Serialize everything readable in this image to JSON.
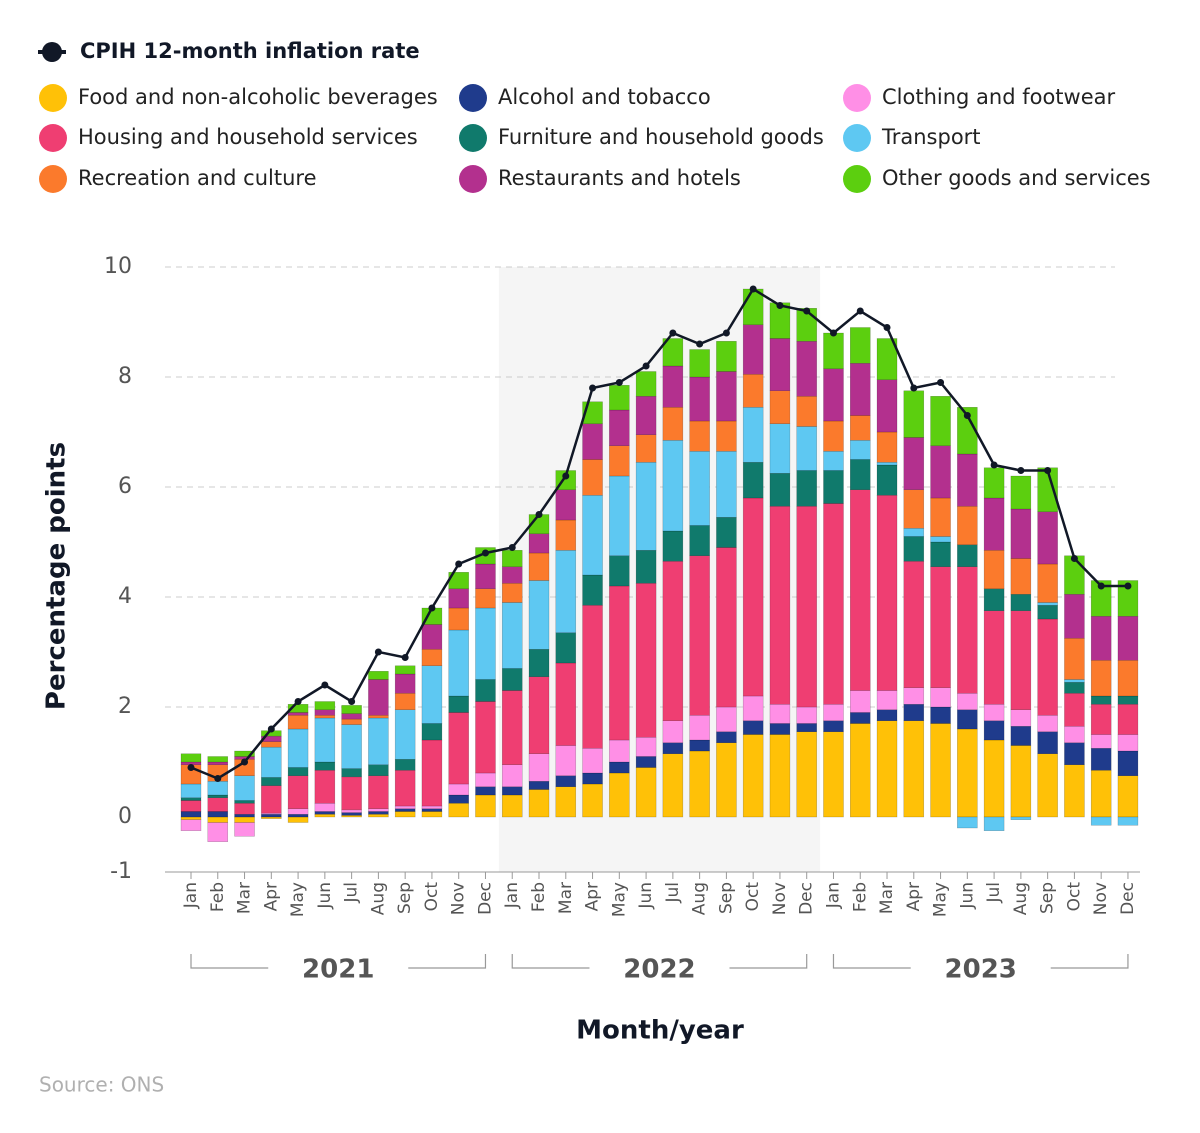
{
  "chart_data": {
    "type": "stacked-bar-line",
    "x_label": "Month/year",
    "y_label": "Percentage points",
    "source": "Source: ONS",
    "categories": [
      "Jan",
      "Feb",
      "Mar",
      "Apr",
      "May",
      "Jun",
      "Jul",
      "Aug",
      "Sep",
      "Oct",
      "Nov",
      "Dec",
      "Jan",
      "Feb",
      "Mar",
      "Apr",
      "May",
      "Jun",
      "Jul",
      "Aug",
      "Sep",
      "Oct",
      "Nov",
      "Dec",
      "Jan",
      "Feb",
      "Mar",
      "Apr",
      "May",
      "Jun",
      "Jul",
      "Aug",
      "Sep",
      "Oct",
      "Nov",
      "Dec"
    ],
    "year_groups": [
      "2021",
      "2022",
      "2023"
    ],
    "highlight_group": 1,
    "ylim": [
      -1,
      10
    ],
    "yticks": [
      -1,
      0,
      2,
      4,
      6,
      8,
      10
    ],
    "grid": true,
    "series": [
      {
        "name": "Food and non-alcoholic beverages",
        "color": "#ffc107",
        "values": [
          -0.05,
          -0.1,
          -0.1,
          -0.03,
          -0.1,
          0.05,
          0.03,
          0.05,
          0.1,
          0.1,
          0.25,
          0.4,
          0.4,
          0.5,
          0.55,
          0.6,
          0.8,
          0.9,
          1.15,
          1.2,
          1.35,
          1.5,
          1.5,
          1.55,
          1.55,
          1.7,
          1.75,
          1.75,
          1.7,
          1.6,
          1.4,
          1.3,
          1.15,
          0.95,
          0.85,
          0.75
        ]
      },
      {
        "name": "Alcohol and tobacco",
        "color": "#1f3b8c",
        "values": [
          0.1,
          0.1,
          0.05,
          0.05,
          0.05,
          0.05,
          0.05,
          0.05,
          0.05,
          0.05,
          0.15,
          0.15,
          0.15,
          0.15,
          0.2,
          0.2,
          0.2,
          0.2,
          0.2,
          0.2,
          0.2,
          0.25,
          0.2,
          0.15,
          0.2,
          0.2,
          0.2,
          0.3,
          0.3,
          0.35,
          0.35,
          0.35,
          0.4,
          0.4,
          0.4,
          0.45
        ]
      },
      {
        "name": "Clothing and footwear",
        "color": "#ff8fe6",
        "values": [
          -0.2,
          -0.35,
          -0.25,
          0.02,
          0.1,
          0.15,
          0.05,
          0.05,
          0.05,
          0.05,
          0.2,
          0.25,
          0.4,
          0.5,
          0.55,
          0.45,
          0.4,
          0.35,
          0.4,
          0.45,
          0.45,
          0.45,
          0.35,
          0.3,
          0.3,
          0.4,
          0.35,
          0.3,
          0.35,
          0.3,
          0.3,
          0.3,
          0.3,
          0.3,
          0.25,
          0.3
        ]
      },
      {
        "name": "Housing and household services",
        "color": "#ef3e72",
        "values": [
          0.2,
          0.25,
          0.2,
          0.5,
          0.6,
          0.6,
          0.6,
          0.6,
          0.65,
          1.2,
          1.3,
          1.3,
          1.35,
          1.4,
          1.5,
          2.6,
          2.8,
          2.8,
          2.9,
          2.9,
          2.9,
          3.6,
          3.6,
          3.65,
          3.65,
          3.65,
          3.55,
          2.3,
          2.2,
          2.3,
          1.7,
          1.8,
          1.75,
          0.6,
          0.55,
          0.55
        ]
      },
      {
        "name": "Furniture and household goods",
        "color": "#107a6c",
        "values": [
          0.05,
          0.05,
          0.05,
          0.15,
          0.15,
          0.15,
          0.15,
          0.2,
          0.2,
          0.3,
          0.3,
          0.4,
          0.4,
          0.5,
          0.55,
          0.55,
          0.55,
          0.6,
          0.55,
          0.55,
          0.55,
          0.65,
          0.6,
          0.65,
          0.6,
          0.55,
          0.55,
          0.45,
          0.45,
          0.4,
          0.4,
          0.3,
          0.25,
          0.2,
          0.15,
          0.15
        ]
      },
      {
        "name": "Transport",
        "color": "#5ec8f2",
        "values": [
          0.25,
          0.25,
          0.45,
          0.55,
          0.7,
          0.8,
          0.8,
          0.85,
          0.9,
          1.05,
          1.2,
          1.3,
          1.2,
          1.25,
          1.5,
          1.45,
          1.45,
          1.6,
          1.65,
          1.35,
          1.2,
          1.0,
          0.9,
          0.8,
          0.35,
          0.35,
          0.05,
          0.15,
          0.1,
          -0.2,
          -0.25,
          -0.05,
          0.05,
          0.05,
          -0.15,
          -0.15
        ]
      },
      {
        "name": "Recreation and culture",
        "color": "#fb7a2c",
        "values": [
          0.35,
          0.3,
          0.3,
          0.1,
          0.25,
          0.05,
          0.1,
          0.05,
          0.3,
          0.3,
          0.4,
          0.35,
          0.35,
          0.5,
          0.55,
          0.65,
          0.55,
          0.5,
          0.6,
          0.55,
          0.55,
          0.6,
          0.6,
          0.55,
          0.55,
          0.45,
          0.55,
          0.7,
          0.7,
          0.7,
          0.7,
          0.65,
          0.7,
          0.75,
          0.65,
          0.65
        ]
      },
      {
        "name": "Restaurants and hotels",
        "color": "#b3308e",
        "values": [
          0.05,
          0.05,
          0.05,
          0.1,
          0.05,
          0.1,
          0.1,
          0.65,
          0.35,
          0.45,
          0.35,
          0.45,
          0.3,
          0.35,
          0.55,
          0.65,
          0.65,
          0.7,
          0.75,
          0.8,
          0.9,
          0.9,
          0.95,
          1.0,
          0.95,
          0.95,
          0.95,
          0.95,
          0.95,
          0.95,
          0.95,
          0.9,
          0.95,
          0.8,
          0.8,
          0.8
        ]
      },
      {
        "name": "Other goods and services",
        "color": "#5ccf0f",
        "values": [
          0.15,
          0.1,
          0.1,
          0.1,
          0.15,
          0.15,
          0.15,
          0.15,
          0.15,
          0.3,
          0.3,
          0.3,
          0.3,
          0.35,
          0.35,
          0.4,
          0.45,
          0.45,
          0.5,
          0.5,
          0.55,
          0.65,
          0.65,
          0.6,
          0.65,
          0.65,
          0.75,
          0.85,
          0.9,
          0.85,
          0.55,
          0.6,
          0.8,
          0.7,
          0.65,
          0.65
        ]
      }
    ],
    "line": {
      "name": "CPIH 12-month inflation rate",
      "color": "#111827",
      "values": [
        0.9,
        0.7,
        1.0,
        1.6,
        2.1,
        2.4,
        2.1,
        3.0,
        2.9,
        3.8,
        4.6,
        4.8,
        4.9,
        5.5,
        6.2,
        7.8,
        7.9,
        8.2,
        8.8,
        8.6,
        8.8,
        9.6,
        9.3,
        9.2,
        8.8,
        9.2,
        8.9,
        7.8,
        7.9,
        7.3,
        6.4,
        6.3,
        6.3,
        4.7,
        4.2,
        4.2
      ]
    }
  }
}
